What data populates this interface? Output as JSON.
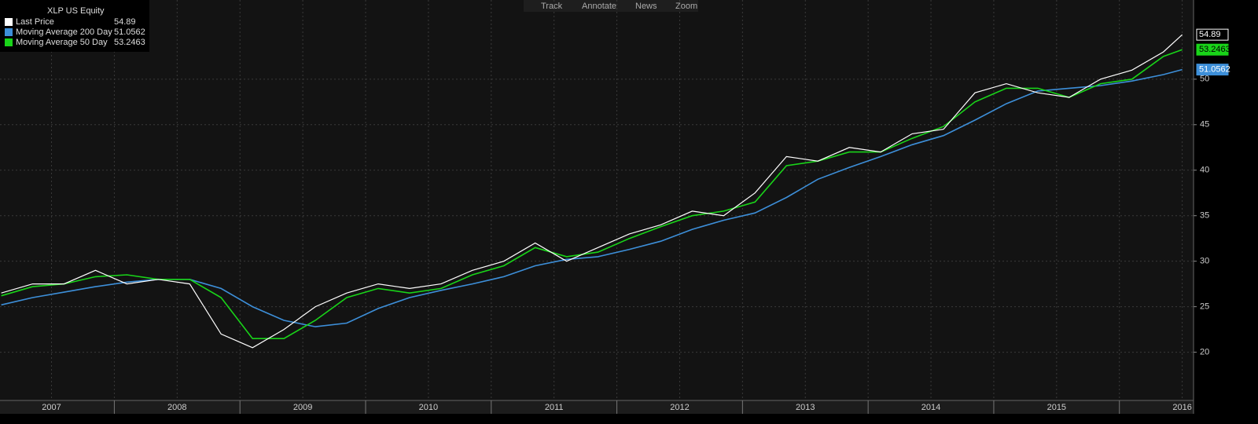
{
  "toolbar": [
    "Track",
    "Annotate",
    "News",
    "Zoom"
  ],
  "chart_data": {
    "type": "line",
    "title": "XLP US Equity",
    "x": [
      2007.1,
      2007.35,
      2007.6,
      2007.85,
      2008.1,
      2008.35,
      2008.6,
      2008.85,
      2009.1,
      2009.35,
      2009.6,
      2009.85,
      2010.1,
      2010.35,
      2010.6,
      2010.85,
      2011.1,
      2011.35,
      2011.6,
      2011.85,
      2012.1,
      2012.35,
      2012.6,
      2012.85,
      2013.1,
      2013.35,
      2013.6,
      2013.85,
      2014.1,
      2014.35,
      2014.6,
      2014.85,
      2015.1,
      2015.35,
      2015.6,
      2015.85,
      2016.1,
      2016.35,
      2016.5
    ],
    "series": [
      {
        "name": "Last Price",
        "color": "#ffffff",
        "values": [
          26.5,
          27.5,
          27.5,
          29,
          27.5,
          28,
          27.5,
          22,
          20.5,
          22.5,
          25,
          26.5,
          27.5,
          27,
          27.5,
          29,
          30,
          32,
          30,
          31.5,
          33,
          34,
          35.5,
          35,
          37.5,
          41.5,
          41,
          42.5,
          42,
          44,
          44.5,
          48.5,
          49.5,
          48.5,
          48,
          50,
          51,
          53,
          54.89
        ]
      },
      {
        "name": "Moving Average 200 Day",
        "color": "#3d8fd9",
        "values": [
          25.2,
          26,
          26.6,
          27.2,
          27.7,
          28,
          28,
          27,
          25,
          23.5,
          22.8,
          23.2,
          24.8,
          26,
          26.8,
          27.5,
          28.3,
          29.5,
          30.2,
          30.5,
          31.3,
          32.2,
          33.5,
          34.5,
          35.3,
          37,
          39,
          40.3,
          41.5,
          42.8,
          43.8,
          45.5,
          47.3,
          48.7,
          49,
          49.3,
          49.8,
          50.5,
          51.0562
        ]
      },
      {
        "name": "Moving Average 50 Day",
        "color": "#19d419",
        "values": [
          26.2,
          27.2,
          27.5,
          28.3,
          28.5,
          28,
          28,
          26,
          21.5,
          21.5,
          23.5,
          26,
          27,
          26.5,
          27,
          28.5,
          29.5,
          31.5,
          30.5,
          31,
          32.5,
          33.8,
          35,
          35.5,
          36.5,
          40.5,
          41,
          42,
          42,
          43.5,
          44.8,
          47.5,
          49,
          49,
          48,
          49.5,
          50,
          52.5,
          53.2463
        ]
      }
    ],
    "xlim": [
      2007.09,
      2016.59
    ],
    "xticks": [
      {
        "value": 2007.5,
        "label": "2007"
      },
      {
        "value": 2008.5,
        "label": "2008"
      },
      {
        "value": 2009.5,
        "label": "2009"
      },
      {
        "value": 2010.5,
        "label": "2010"
      },
      {
        "value": 2011.5,
        "label": "2011"
      },
      {
        "value": 2012.5,
        "label": "2012"
      },
      {
        "value": 2013.5,
        "label": "2013"
      },
      {
        "value": 2014.5,
        "label": "2014"
      },
      {
        "value": 2015.5,
        "label": "2015"
      },
      {
        "value": 2016.5,
        "label": "2016"
      }
    ],
    "ylim": [
      14.7,
      58.7
    ],
    "yticks": [
      20,
      25,
      30,
      35,
      40,
      45,
      50
    ],
    "grid": true
  }
}
